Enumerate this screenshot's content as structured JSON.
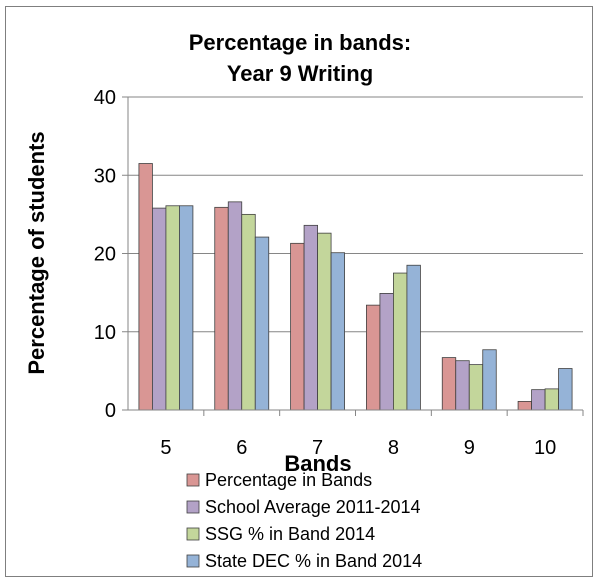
{
  "chart_data": {
    "type": "bar",
    "title_lines": [
      "Percentage in bands:",
      "Year 9 Writing"
    ],
    "xlabel": "Bands",
    "ylabel": "Percentage of students",
    "categories": [
      "5",
      "6",
      "7",
      "8",
      "9",
      "10"
    ],
    "ylim": [
      0,
      40
    ],
    "yticks": [
      "0",
      "10",
      "20",
      "30",
      "40"
    ],
    "grid": "horizontal",
    "legend_position": "bottom",
    "series": [
      {
        "name": "Percentage in Bands",
        "color": "#d99694",
        "values": [
          31.5,
          25.9,
          21.3,
          13.4,
          6.7,
          1.1
        ]
      },
      {
        "name": "School Average 2011-2014",
        "color": "#b3a2c7",
        "values": [
          25.8,
          26.6,
          23.6,
          14.9,
          6.3,
          2.6
        ]
      },
      {
        "name": "SSG % in Band 2014",
        "color": "#c3d69b",
        "values": [
          26.1,
          25.0,
          22.6,
          17.5,
          5.8,
          2.7
        ]
      },
      {
        "name": "State DEC % in Band 2014",
        "color": "#95b3d7",
        "values": [
          26.1,
          22.1,
          20.1,
          18.5,
          7.7,
          5.3
        ]
      }
    ]
  }
}
